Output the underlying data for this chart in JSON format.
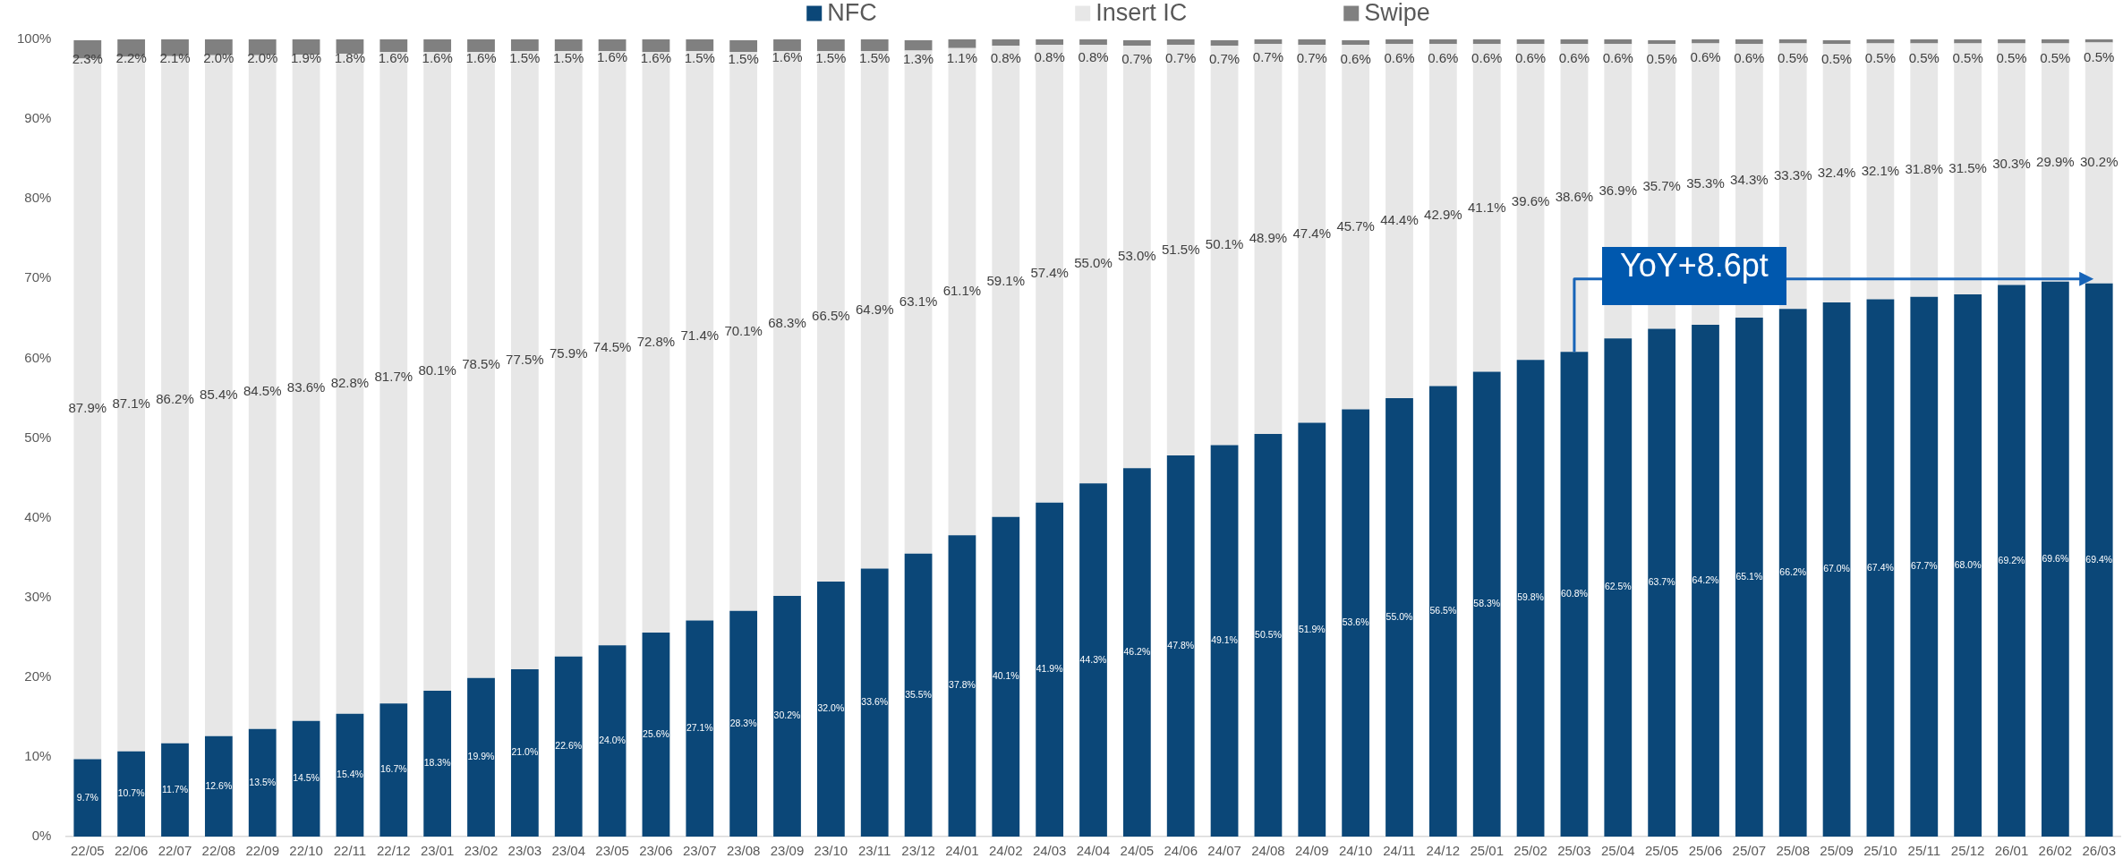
{
  "chart_data": {
    "type": "bar",
    "stacked": true,
    "legend": "top",
    "categories": [
      "22/05",
      "22/06",
      "22/07",
      "22/08",
      "22/09",
      "22/10",
      "22/11",
      "22/12",
      "23/01",
      "23/02",
      "23/03",
      "23/04",
      "23/05",
      "23/06",
      "23/07",
      "23/08",
      "23/09",
      "23/10",
      "23/11",
      "23/12",
      "24/01",
      "24/02",
      "24/03",
      "24/04",
      "24/05",
      "24/06",
      "24/07",
      "24/08",
      "24/09",
      "24/10",
      "24/11",
      "24/12",
      "25/01",
      "25/02",
      "25/03",
      "25/04",
      "25/05",
      "25/06",
      "25/07",
      "25/08",
      "25/09",
      "25/10",
      "25/11",
      "25/12",
      "26/01",
      "26/02",
      "26/03"
    ],
    "series": [
      {
        "name": "NFC",
        "color": "#0b4778",
        "values": [
          9.7,
          10.7,
          11.7,
          12.6,
          13.5,
          14.5,
          15.4,
          16.7,
          18.3,
          19.9,
          21.0,
          22.6,
          24.0,
          25.6,
          27.1,
          28.3,
          30.2,
          32.0,
          33.6,
          35.5,
          37.8,
          40.1,
          41.9,
          44.3,
          46.2,
          47.8,
          49.1,
          50.5,
          51.9,
          53.6,
          55.0,
          56.5,
          58.3,
          59.8,
          60.8,
          62.5,
          63.7,
          64.2,
          65.1,
          66.2,
          67.0,
          67.4,
          67.7,
          68.0,
          69.2,
          69.6,
          69.4
        ],
        "value_labels": [
          "9.7%",
          "10.7%",
          "11.7%",
          "12.6%",
          "13.5%",
          "14.5%",
          "15.4%",
          "16.7%",
          "18.3%",
          "19.9%",
          "21.0%",
          "22.6%",
          "24.0%",
          "25.6%",
          "27.1%",
          "28.3%",
          "30.2%",
          "32.0%",
          "33.6%",
          "35.5%",
          "37.8%",
          "40.1%",
          "41.9%",
          "44.3%",
          "46.2%",
          "47.8%",
          "49.1%",
          "50.5%",
          "51.9%",
          "53.6%",
          "55.0%",
          "56.5%",
          "58.3%",
          "59.8%",
          "60.8%",
          "62.5%",
          "63.7%",
          "64.2%",
          "65.1%",
          "66.2%",
          "67.0%",
          "67.4%",
          "67.7%",
          "68.0%",
          "69.2%",
          "69.6%",
          "69.4%"
        ]
      },
      {
        "name": "Insert IC",
        "color": "#e7e7e7",
        "values": [
          87.9,
          87.1,
          86.2,
          85.4,
          84.5,
          83.6,
          82.8,
          81.7,
          80.1,
          78.5,
          77.5,
          75.9,
          74.5,
          72.8,
          71.4,
          70.1,
          68.3,
          66.5,
          64.9,
          63.1,
          61.1,
          59.1,
          57.4,
          55.0,
          53.0,
          51.5,
          50.1,
          48.9,
          47.4,
          45.7,
          44.4,
          42.9,
          41.1,
          39.6,
          38.6,
          36.9,
          35.7,
          35.3,
          34.3,
          33.3,
          32.4,
          32.1,
          31.8,
          31.5,
          30.3,
          29.9,
          30.2
        ],
        "value_labels": [
          "87.9%",
          "87.1%",
          "86.2%",
          "85.4%",
          "84.5%",
          "83.6%",
          "82.8%",
          "81.7%",
          "80.1%",
          "78.5%",
          "77.5%",
          "75.9%",
          "74.5%",
          "72.8%",
          "71.4%",
          "70.1%",
          "68.3%",
          "66.5%",
          "64.9%",
          "63.1%",
          "61.1%",
          "59.1%",
          "57.4%",
          "55.0%",
          "53.0%",
          "51.5%",
          "50.1%",
          "48.9%",
          "47.4%",
          "45.7%",
          "44.4%",
          "42.9%",
          "41.1%",
          "39.6%",
          "38.6%",
          "36.9%",
          "35.7%",
          "35.3%",
          "34.3%",
          "33.3%",
          "32.4%",
          "32.1%",
          "31.8%",
          "31.5%",
          "30.3%",
          "29.9%",
          "30.2%"
        ]
      },
      {
        "name": "Swipe",
        "color": "#808080",
        "values": [
          2.3,
          2.2,
          2.1,
          2.0,
          2.0,
          1.9,
          1.8,
          1.6,
          1.6,
          1.6,
          1.5,
          1.5,
          1.6,
          1.6,
          1.5,
          1.5,
          1.6,
          1.5,
          1.5,
          1.3,
          1.1,
          0.8,
          0.8,
          0.8,
          0.7,
          0.7,
          0.7,
          0.7,
          0.7,
          0.6,
          0.6,
          0.6,
          0.6,
          0.6,
          0.6,
          0.6,
          0.5,
          0.6,
          0.6,
          0.5,
          0.5,
          0.5,
          0.5,
          0.5,
          0.5,
          0.5,
          0.5
        ],
        "value_labels": [
          "2.3%",
          "2.2%",
          "2.1%",
          "2.0%",
          "2.0%",
          "1.9%",
          "1.8%",
          "1.6%",
          "1.6%",
          "1.6%",
          "1.5%",
          "1.5%",
          "1.6%",
          "1.6%",
          "1.5%",
          "1.5%",
          "1.6%",
          "1.5%",
          "1.5%",
          "1.3%",
          "1.1%",
          "0.8%",
          "0.8%",
          "0.8%",
          "0.7%",
          "0.7%",
          "0.7%",
          "0.7%",
          "0.7%",
          "0.6%",
          "0.6%",
          "0.6%",
          "0.6%",
          "0.6%",
          "0.6%",
          "0.6%",
          "0.5%",
          "0.6%",
          "0.6%",
          "0.5%",
          "0.5%",
          "0.5%",
          "0.5%",
          "0.5%",
          "0.5%",
          "0.5%",
          "0.5%"
        ]
      }
    ],
    "ylim": [
      0,
      100
    ],
    "yticks": [
      {
        "value": 0,
        "label": "0%"
      },
      {
        "value": 10,
        "label": "10%"
      },
      {
        "value": 20,
        "label": "20%"
      },
      {
        "value": 30,
        "label": "30%"
      },
      {
        "value": 40,
        "label": "40%"
      },
      {
        "value": 50,
        "label": "50%"
      },
      {
        "value": 60,
        "label": "60%"
      },
      {
        "value": 70,
        "label": "70%"
      },
      {
        "value": 80,
        "label": "80%"
      },
      {
        "value": 90,
        "label": "90%"
      },
      {
        "value": 100,
        "label": "100%"
      }
    ],
    "annotations": [
      "YoY+8.6pt"
    ]
  }
}
